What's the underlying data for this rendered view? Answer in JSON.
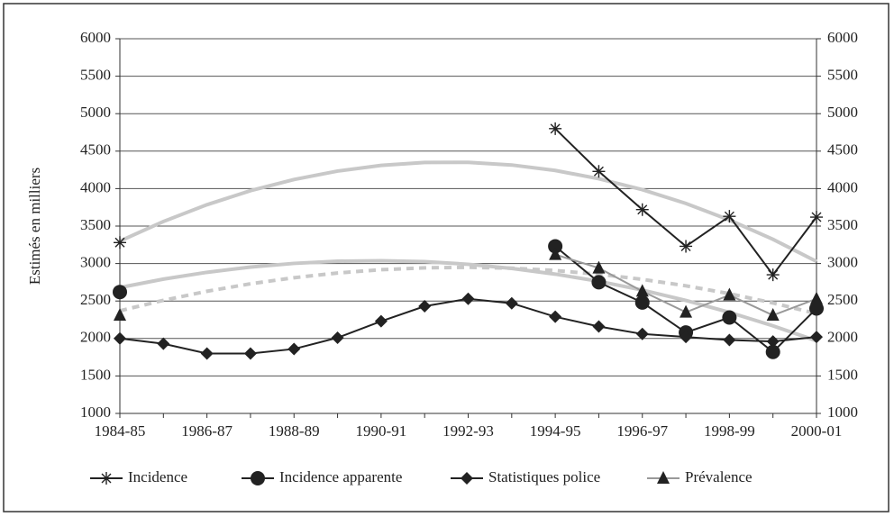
{
  "chart_data": {
    "type": "line",
    "y_axis_label": "Estimés en milliers",
    "categories": [
      "1984-85",
      null,
      "1986-87",
      null,
      "1988-89",
      null,
      "1990-91",
      null,
      "1992-93",
      null,
      "1994-95",
      null,
      "1996-97",
      null,
      "1998-99",
      null,
      "2000-01"
    ],
    "ylim": [
      1000,
      6000
    ],
    "yticks": [
      1000,
      1500,
      2000,
      2500,
      3000,
      3500,
      4000,
      4500,
      5000,
      5500,
      6000
    ],
    "y2lim": [
      1000,
      6000
    ],
    "y2ticks": [
      1000,
      1500,
      2000,
      2500,
      3000,
      3500,
      4000,
      4500,
      5000,
      5500,
      6000
    ],
    "grid": true,
    "legend": "bottom",
    "series": [
      {
        "name": "Incidence",
        "marker": "asterisk",
        "color": "#222222",
        "values": [
          3280,
          null,
          null,
          null,
          null,
          null,
          null,
          null,
          null,
          null,
          4800,
          4230,
          3720,
          3230,
          3630,
          2850,
          3620
        ]
      },
      {
        "name": "Incidence apparente",
        "marker": "circle",
        "color": "#222222",
        "values": [
          2620,
          null,
          null,
          null,
          null,
          null,
          null,
          null,
          null,
          null,
          3230,
          2750,
          2480,
          2080,
          2280,
          1820,
          2400
        ]
      },
      {
        "name": "Statistiques police",
        "marker": "diamond",
        "color": "#222222",
        "values": [
          2000,
          1930,
          1800,
          1800,
          1860,
          2010,
          2230,
          2430,
          2530,
          2470,
          2290,
          2160,
          2060,
          2020,
          1980,
          1960,
          2020
        ]
      },
      {
        "name": "Prévalence",
        "marker": "triangle",
        "color": "#999999",
        "values": [
          2310,
          null,
          null,
          null,
          null,
          null,
          null,
          null,
          null,
          null,
          3120,
          2940,
          2630,
          2350,
          2580,
          2310,
          2530
        ]
      }
    ],
    "trends": [
      {
        "color": "#c8c8c8",
        "values": [
          3300,
          3561,
          3785,
          3972,
          4121,
          4234,
          4310,
          4349,
          4350,
          4315,
          4242,
          4132,
          3986,
          3802,
          3581,
          3323,
          3028
        ]
      },
      {
        "color": "#c8c8c8",
        "values": [
          2680,
          2792,
          2883,
          2953,
          3002,
          3031,
          3038,
          3025,
          2990,
          2935,
          2859,
          2763,
          2646,
          2508,
          2349,
          2169,
          1969
        ]
      },
      {
        "color": "#c8c8c8",
        "dashed": true,
        "values": [
          2370,
          2509,
          2630,
          2730,
          2811,
          2874,
          2918,
          2943,
          2950,
          2938,
          2907,
          2857,
          2789,
          2703,
          2598,
          2474,
          2332
        ]
      }
    ]
  }
}
